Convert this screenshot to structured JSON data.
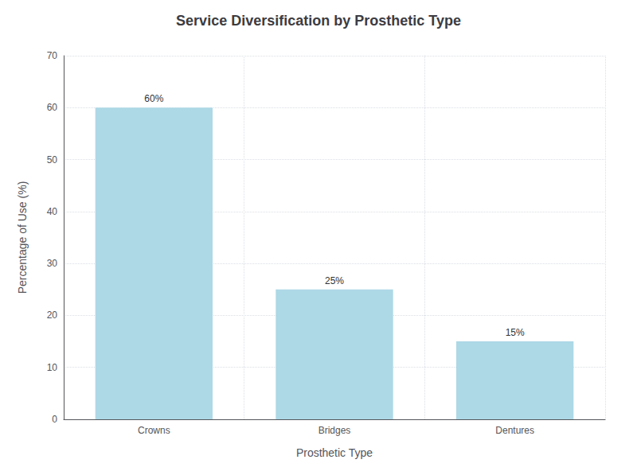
{
  "chart_data": {
    "type": "bar",
    "title": "Service Diversification by Prosthetic Type",
    "categories": [
      "Crowns",
      "Bridges",
      "Dentures"
    ],
    "values": [
      60,
      25,
      15
    ],
    "value_labels": [
      "60%",
      "25%",
      "15%"
    ],
    "data_labels": true,
    "color": "#ADD8E6",
    "xlabel": "Prosthetic Type",
    "ylabel": "Percentage of Use (%)",
    "ylim": [
      0,
      70
    ],
    "yticks": [
      0,
      10,
      20,
      30,
      40,
      50,
      60,
      70
    ],
    "grid": true
  }
}
